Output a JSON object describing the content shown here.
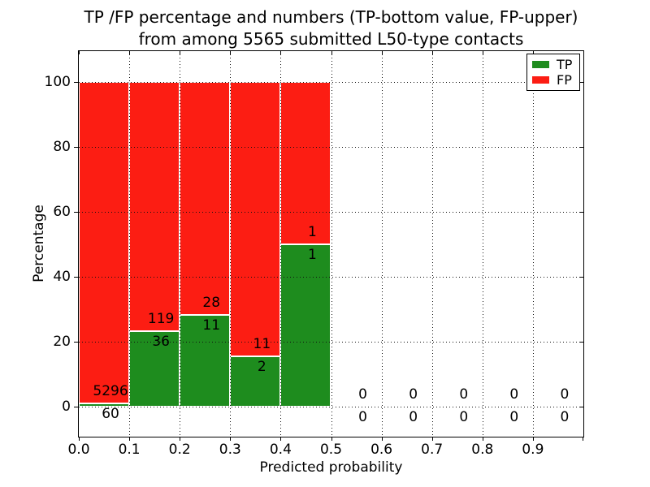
{
  "title": {
    "line1": "TP /FP percentage and numbers (TP-bottom value, FP-upper)",
    "line2": "from among 5565 submitted L50-type contacts"
  },
  "chart_data": {
    "type": "bar",
    "stacked": true,
    "normalized": "percent-of-bin",
    "title": "TP /FP percentage and numbers (TP-bottom value, FP-upper)\nfrom among 5565 submitted L50-type contacts",
    "xlabel": "Predicted probability",
    "ylabel": "Percentage",
    "total_contacts": 5565,
    "xlim": [
      0.0,
      1.0
    ],
    "ylim": [
      -9.5,
      109.5
    ],
    "grid": "dotted-both-axes",
    "legend_position": "upper-right",
    "x_tick_values": [
      0.0,
      0.1,
      0.2,
      0.3,
      0.4,
      0.5,
      0.6,
      0.7,
      0.8,
      0.9
    ],
    "x_tick_labels": [
      "0.0",
      "0.1",
      "0.2",
      "0.3",
      "0.4",
      "0.5",
      "0.6",
      "0.7",
      "0.8",
      "0.9"
    ],
    "y_tick_values": [
      0,
      20,
      40,
      60,
      80,
      100
    ],
    "y_tick_labels": [
      "0",
      "20",
      "40",
      "60",
      "80",
      "100"
    ],
    "bin_width": 0.1,
    "bins": [
      {
        "range": [
          0.0,
          0.1
        ],
        "tp": 60,
        "fp": 5296,
        "tp_percent": 1.12
      },
      {
        "range": [
          0.1,
          0.2
        ],
        "tp": 36,
        "fp": 119,
        "tp_percent": 23.23
      },
      {
        "range": [
          0.2,
          0.3
        ],
        "tp": 11,
        "fp": 28,
        "tp_percent": 28.21
      },
      {
        "range": [
          0.3,
          0.4
        ],
        "tp": 2,
        "fp": 11,
        "tp_percent": 15.38
      },
      {
        "range": [
          0.4,
          0.5
        ],
        "tp": 1,
        "fp": 1,
        "tp_percent": 50.0
      },
      {
        "range": [
          0.5,
          0.6
        ],
        "tp": 0,
        "fp": 0,
        "tp_percent": 0
      },
      {
        "range": [
          0.6,
          0.7
        ],
        "tp": 0,
        "fp": 0,
        "tp_percent": 0
      },
      {
        "range": [
          0.7,
          0.8
        ],
        "tp": 0,
        "fp": 0,
        "tp_percent": 0
      },
      {
        "range": [
          0.8,
          0.9
        ],
        "tp": 0,
        "fp": 0,
        "tp_percent": 0
      },
      {
        "range": [
          0.9,
          1.0
        ],
        "tp": 0,
        "fp": 0,
        "tp_percent": 0
      }
    ],
    "series": [
      {
        "name": "TP",
        "color": "#1e8c1e"
      },
      {
        "name": "FP",
        "color": "#fc1d13"
      }
    ],
    "colors": {
      "tp": "#1e8c1e",
      "fp": "#fc1d13",
      "bar_edge": "#ffffff",
      "grid": "#111111",
      "axis": "#000000",
      "background": "#ffffff"
    },
    "legend": {
      "entries": [
        {
          "label": "TP",
          "color": "#1e8c1e"
        },
        {
          "label": "FP",
          "color": "#fc1d13"
        }
      ]
    }
  }
}
